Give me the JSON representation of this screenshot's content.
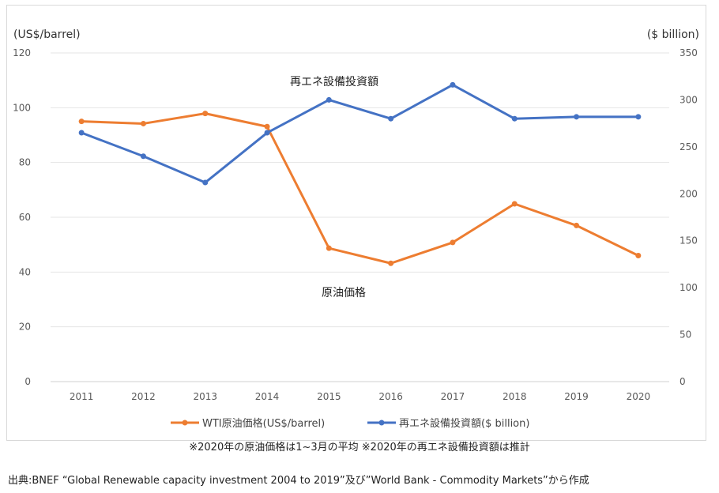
{
  "chart_data": {
    "type": "line",
    "categories": [
      "2011",
      "2012",
      "2013",
      "2014",
      "2015",
      "2016",
      "2017",
      "2018",
      "2019",
      "2020"
    ],
    "left_axis": {
      "unit_label": "(US$/barrel)",
      "min": 0,
      "max": 120,
      "ticks": [
        0,
        20,
        40,
        60,
        80,
        100,
        120
      ]
    },
    "right_axis": {
      "unit_label": "($ billion)",
      "min": 0,
      "max": 350,
      "ticks": [
        0,
        50,
        100,
        150,
        200,
        250,
        300,
        350
      ]
    },
    "series": [
      {
        "name": "WTI原油価格(US$/barrel)",
        "axis": "left",
        "color": "#ED7D31",
        "values": [
          95,
          94.2,
          97.9,
          93.1,
          48.7,
          43.2,
          50.8,
          64.9,
          57.0,
          46.0
        ]
      },
      {
        "name": "再エネ設備投資額($ billion)",
        "axis": "right",
        "color": "#4472C4",
        "values": [
          265,
          240,
          212,
          265,
          300,
          280,
          316,
          280,
          282,
          282
        ]
      }
    ],
    "annotations": [
      {
        "text": "再エネ設備投資額"
      },
      {
        "text": "原油価格"
      }
    ],
    "gridlines": true,
    "legend": "bottom"
  },
  "footnote": "※2020年の原油価格は1~3月の平均 ※2020年の再エネ設備投資額は推計",
  "source": "出典:BNEF “Global Renewable capacity investment 2004 to 2019”及び”World Bank - Commodity Markets”から作成"
}
